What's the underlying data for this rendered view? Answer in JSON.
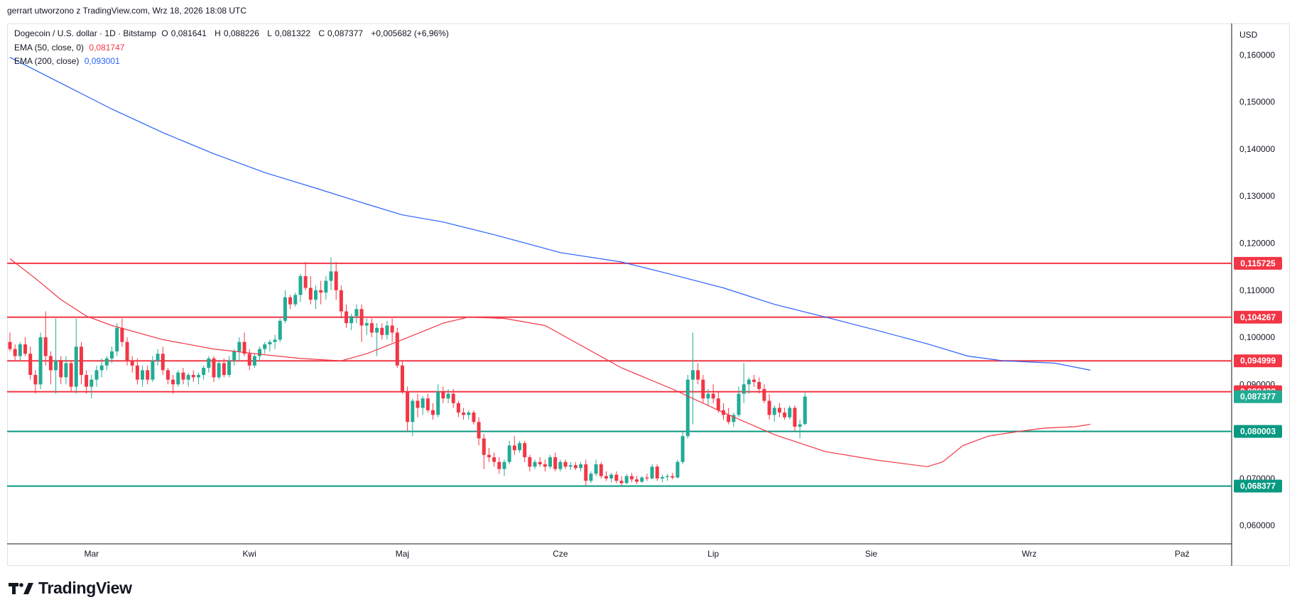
{
  "header": "gerrart utworzono z TradingView.com, Wrz 18, 2026 18:08 UTC",
  "legend": {
    "symbol": "Dogecoin / U.S. dollar · 1D · Bitstamp",
    "open_label": "O",
    "open": "0,081641",
    "high_label": "H",
    "high": "0,088226",
    "low_label": "L",
    "low": "0,081322",
    "close_label": "C",
    "close": "0,087377",
    "change": "+0,005682 (+6,96%)",
    "ema50_label": "EMA (50, close, 0)",
    "ema50_value": "0,081747",
    "ema200_label": "EMA (200, close)",
    "ema200_value": "0,093001"
  },
  "currency": "USD",
  "brand": "TradingView",
  "colors": {
    "up": "#22ab94",
    "down": "#f23645",
    "ema50": "#f23645",
    "ema200": "#2962ff",
    "resistance": "#f23645",
    "support": "#089981",
    "text": "#131722",
    "axis": "#6a6d78"
  },
  "chart_data": {
    "type": "candlestick",
    "y_ticks": [
      "0,060000",
      "0,070000",
      "0,080000",
      "0,090000",
      "0,100000",
      "0,110000",
      "0,120000",
      "0,130000",
      "0,140000",
      "0,150000",
      "0,160000"
    ],
    "y_tick_values": [
      0.06,
      0.07,
      0.08,
      0.09,
      0.1,
      0.11,
      0.12,
      0.13,
      0.14,
      0.15,
      0.16
    ],
    "ylim": [
      0.0561,
      0.1667
    ],
    "x_ticks": [
      {
        "label": "Mar",
        "index": 16
      },
      {
        "label": "Kwi",
        "index": 47
      },
      {
        "label": "Maj",
        "index": 77
      },
      {
        "label": "Cze",
        "index": 108
      },
      {
        "label": "Lip",
        "index": 138
      },
      {
        "label": "Sie",
        "index": 169
      },
      {
        "label": "Wrz",
        "index": 200
      },
      {
        "label": "Paź",
        "index": 230
      }
    ],
    "horizontal_levels": [
      {
        "value": 0.115725,
        "label": "0,115725",
        "kind": "resistance"
      },
      {
        "value": 0.104267,
        "label": "0,104267",
        "kind": "resistance"
      },
      {
        "value": 0.094999,
        "label": "0,094999",
        "kind": "resistance"
      },
      {
        "value": 0.088428,
        "label": "0,088428",
        "kind": "resistance"
      },
      {
        "value": 0.080003,
        "label": "0,080003",
        "kind": "support"
      },
      {
        "value": 0.068377,
        "label": "0,068377",
        "kind": "support"
      }
    ],
    "last_price": {
      "value": 0.087377,
      "label": "0,087377"
    },
    "ema200": [
      [
        0,
        0.1595
      ],
      [
        10,
        0.154
      ],
      [
        20,
        0.1485
      ],
      [
        30,
        0.1435
      ],
      [
        40,
        0.139
      ],
      [
        50,
        0.135
      ],
      [
        60,
        0.1317
      ],
      [
        70,
        0.1283
      ],
      [
        77,
        0.126
      ],
      [
        85,
        0.1245
      ],
      [
        95,
        0.1218
      ],
      [
        108,
        0.118
      ],
      [
        120,
        0.116
      ],
      [
        130,
        0.1133
      ],
      [
        140,
        0.1105
      ],
      [
        150,
        0.107
      ],
      [
        160,
        0.1043
      ],
      [
        170,
        0.1015
      ],
      [
        180,
        0.0986
      ],
      [
        188,
        0.096
      ],
      [
        195,
        0.095
      ],
      [
        205,
        0.0945
      ],
      [
        212,
        0.093
      ]
    ],
    "ema50": [
      [
        0,
        0.1167
      ],
      [
        5,
        0.1125
      ],
      [
        10,
        0.108
      ],
      [
        15,
        0.1045
      ],
      [
        20,
        0.1025
      ],
      [
        30,
        0.0995
      ],
      [
        40,
        0.0975
      ],
      [
        50,
        0.0963
      ],
      [
        57,
        0.0955
      ],
      [
        65,
        0.095
      ],
      [
        70,
        0.0965
      ],
      [
        77,
        0.0995
      ],
      [
        85,
        0.103
      ],
      [
        90,
        0.1043
      ],
      [
        97,
        0.104
      ],
      [
        105,
        0.1025
      ],
      [
        110,
        0.0995
      ],
      [
        120,
        0.0935
      ],
      [
        130,
        0.089
      ],
      [
        140,
        0.084
      ],
      [
        150,
        0.0793
      ],
      [
        160,
        0.0757
      ],
      [
        170,
        0.0739
      ],
      [
        180,
        0.0725
      ],
      [
        183,
        0.0735
      ],
      [
        187,
        0.077
      ],
      [
        192,
        0.079
      ],
      [
        198,
        0.08
      ],
      [
        203,
        0.0807
      ],
      [
        209,
        0.081
      ],
      [
        212,
        0.0815
      ]
    ],
    "candles": [
      [
        0.099,
        0.101,
        0.097,
        0.0975
      ],
      [
        0.0975,
        0.0985,
        0.095,
        0.096
      ],
      [
        0.096,
        0.099,
        0.095,
        0.0985
      ],
      [
        0.0985,
        0.1,
        0.096,
        0.0965
      ],
      [
        0.0965,
        0.098,
        0.091,
        0.092
      ],
      [
        0.092,
        0.093,
        0.088,
        0.09
      ],
      [
        0.09,
        0.101,
        0.089,
        0.1
      ],
      [
        0.1,
        0.1055,
        0.094,
        0.096
      ],
      [
        0.096,
        0.097,
        0.09,
        0.093
      ],
      [
        0.093,
        0.104,
        0.088,
        0.095
      ],
      [
        0.095,
        0.096,
        0.09,
        0.0915
      ],
      [
        0.0915,
        0.096,
        0.09,
        0.0945
      ],
      [
        0.0945,
        0.095,
        0.0885,
        0.0895
      ],
      [
        0.0895,
        0.104,
        0.088,
        0.098
      ],
      [
        0.098,
        0.099,
        0.09,
        0.092
      ],
      [
        0.092,
        0.093,
        0.088,
        0.0895
      ],
      [
        0.0895,
        0.092,
        0.087,
        0.091
      ],
      [
        0.091,
        0.094,
        0.0895,
        0.093
      ],
      [
        0.093,
        0.0955,
        0.0915,
        0.094
      ],
      [
        0.094,
        0.096,
        0.093,
        0.0955
      ],
      [
        0.0955,
        0.098,
        0.0945,
        0.097
      ],
      [
        0.097,
        0.103,
        0.096,
        0.102
      ],
      [
        0.102,
        0.104,
        0.098,
        0.099
      ],
      [
        0.099,
        0.1,
        0.094,
        0.095
      ],
      [
        0.095,
        0.096,
        0.0925,
        0.094
      ],
      [
        0.094,
        0.0955,
        0.09,
        0.091
      ],
      [
        0.091,
        0.094,
        0.0895,
        0.093
      ],
      [
        0.093,
        0.094,
        0.09,
        0.091
      ],
      [
        0.091,
        0.096,
        0.0905,
        0.095
      ],
      [
        0.095,
        0.0975,
        0.094,
        0.0965
      ],
      [
        0.0965,
        0.098,
        0.092,
        0.093
      ],
      [
        0.093,
        0.0935,
        0.09,
        0.091
      ],
      [
        0.091,
        0.092,
        0.088,
        0.09
      ],
      [
        0.09,
        0.093,
        0.0895,
        0.0925
      ],
      [
        0.0925,
        0.0935,
        0.09,
        0.091
      ],
      [
        0.091,
        0.0925,
        0.0895,
        0.092
      ],
      [
        0.092,
        0.093,
        0.0905,
        0.0915
      ],
      [
        0.0915,
        0.0925,
        0.09,
        0.092
      ],
      [
        0.092,
        0.094,
        0.091,
        0.0935
      ],
      [
        0.0935,
        0.096,
        0.0925,
        0.0955
      ],
      [
        0.0955,
        0.096,
        0.0905,
        0.0915
      ],
      [
        0.0915,
        0.095,
        0.091,
        0.0945
      ],
      [
        0.0945,
        0.0955,
        0.0915,
        0.092
      ],
      [
        0.092,
        0.096,
        0.0915,
        0.095
      ],
      [
        0.095,
        0.0975,
        0.094,
        0.097
      ],
      [
        0.097,
        0.1,
        0.095,
        0.099
      ],
      [
        0.099,
        0.101,
        0.096,
        0.0965
      ],
      [
        0.0965,
        0.0975,
        0.093,
        0.094
      ],
      [
        0.094,
        0.0965,
        0.0935,
        0.096
      ],
      [
        0.096,
        0.098,
        0.095,
        0.0975
      ],
      [
        0.0975,
        0.099,
        0.0965,
        0.0985
      ],
      [
        0.0985,
        0.0995,
        0.097,
        0.099
      ],
      [
        0.099,
        0.1005,
        0.0975,
        0.0995
      ],
      [
        0.0995,
        0.104,
        0.099,
        0.1035
      ],
      [
        0.1035,
        0.11,
        0.103,
        0.1085
      ],
      [
        0.1085,
        0.109,
        0.106,
        0.107
      ],
      [
        0.107,
        0.1095,
        0.1065,
        0.109
      ],
      [
        0.109,
        0.1135,
        0.1075,
        0.113
      ],
      [
        0.113,
        0.116,
        0.11,
        0.1105
      ],
      [
        0.1105,
        0.113,
        0.107,
        0.108
      ],
      [
        0.108,
        0.111,
        0.106,
        0.11
      ],
      [
        0.11,
        0.112,
        0.107,
        0.1095
      ],
      [
        0.1095,
        0.113,
        0.108,
        0.112
      ],
      [
        0.112,
        0.117,
        0.11,
        0.114
      ],
      [
        0.114,
        0.116,
        0.108,
        0.11
      ],
      [
        0.11,
        0.111,
        0.104,
        0.1055
      ],
      [
        0.1055,
        0.107,
        0.102,
        0.103
      ],
      [
        0.103,
        0.105,
        0.1015,
        0.1045
      ],
      [
        0.1045,
        0.107,
        0.103,
        0.106
      ],
      [
        0.106,
        0.107,
        0.099,
        0.1025
      ],
      [
        0.1025,
        0.104,
        0.1005,
        0.103
      ],
      [
        0.103,
        0.104,
        0.1,
        0.101
      ],
      [
        0.101,
        0.103,
        0.096,
        0.102
      ],
      [
        0.102,
        0.103,
        0.0995,
        0.1005
      ],
      [
        0.1005,
        0.1035,
        0.0995,
        0.1025
      ],
      [
        0.1025,
        0.104,
        0.099,
        0.101
      ],
      [
        0.101,
        0.102,
        0.0935,
        0.094
      ],
      [
        0.094,
        0.095,
        0.088,
        0.0885
      ],
      [
        0.0885,
        0.0895,
        0.08,
        0.082
      ],
      [
        0.082,
        0.087,
        0.079,
        0.0865
      ],
      [
        0.0865,
        0.088,
        0.083,
        0.085
      ],
      [
        0.085,
        0.0875,
        0.0835,
        0.087
      ],
      [
        0.087,
        0.088,
        0.084,
        0.0845
      ],
      [
        0.0845,
        0.086,
        0.0825,
        0.0835
      ],
      [
        0.0835,
        0.09,
        0.083,
        0.0885
      ],
      [
        0.0885,
        0.0895,
        0.086,
        0.087
      ],
      [
        0.087,
        0.089,
        0.086,
        0.088
      ],
      [
        0.088,
        0.089,
        0.085,
        0.086
      ],
      [
        0.086,
        0.0865,
        0.083,
        0.084
      ],
      [
        0.084,
        0.085,
        0.0825,
        0.0835
      ],
      [
        0.0835,
        0.0845,
        0.0825,
        0.084
      ],
      [
        0.084,
        0.0845,
        0.0815,
        0.082
      ],
      [
        0.082,
        0.083,
        0.077,
        0.0785
      ],
      [
        0.0785,
        0.0795,
        0.072,
        0.075
      ],
      [
        0.075,
        0.0765,
        0.0735,
        0.0745
      ],
      [
        0.0745,
        0.0755,
        0.0725,
        0.0735
      ],
      [
        0.0735,
        0.0745,
        0.071,
        0.072
      ],
      [
        0.072,
        0.074,
        0.0705,
        0.0735
      ],
      [
        0.0735,
        0.078,
        0.073,
        0.077
      ],
      [
        0.077,
        0.079,
        0.075,
        0.076
      ],
      [
        0.076,
        0.078,
        0.0755,
        0.0775
      ],
      [
        0.0775,
        0.078,
        0.0735,
        0.0745
      ],
      [
        0.0745,
        0.075,
        0.0715,
        0.0725
      ],
      [
        0.0725,
        0.074,
        0.072,
        0.0735
      ],
      [
        0.0735,
        0.0745,
        0.0725,
        0.073
      ],
      [
        0.073,
        0.074,
        0.0715,
        0.0725
      ],
      [
        0.0725,
        0.075,
        0.072,
        0.0745
      ],
      [
        0.0745,
        0.0755,
        0.0715,
        0.072
      ],
      [
        0.072,
        0.074,
        0.0715,
        0.0735
      ],
      [
        0.0735,
        0.074,
        0.072,
        0.0725
      ],
      [
        0.0725,
        0.0735,
        0.0718,
        0.0728
      ],
      [
        0.0728,
        0.0735,
        0.0718,
        0.0722
      ],
      [
        0.0722,
        0.0735,
        0.0715,
        0.073
      ],
      [
        0.073,
        0.074,
        0.0685,
        0.0695
      ],
      [
        0.0695,
        0.0715,
        0.069,
        0.071
      ],
      [
        0.071,
        0.074,
        0.0705,
        0.073
      ],
      [
        0.073,
        0.0735,
        0.07,
        0.0705
      ],
      [
        0.0705,
        0.0715,
        0.0695,
        0.07
      ],
      [
        0.07,
        0.0712,
        0.0692,
        0.0708
      ],
      [
        0.0708,
        0.0715,
        0.069,
        0.0695
      ],
      [
        0.0695,
        0.0705,
        0.0685,
        0.069
      ],
      [
        0.069,
        0.071,
        0.0688,
        0.0705
      ],
      [
        0.0705,
        0.0712,
        0.0692,
        0.0698
      ],
      [
        0.0698,
        0.0705,
        0.0688,
        0.0693
      ],
      [
        0.0693,
        0.0705,
        0.069,
        0.0702
      ],
      [
        0.0702,
        0.071,
        0.0695,
        0.07
      ],
      [
        0.07,
        0.073,
        0.0698,
        0.0725
      ],
      [
        0.0725,
        0.073,
        0.0695,
        0.07
      ],
      [
        0.07,
        0.0708,
        0.0692,
        0.0703
      ],
      [
        0.0703,
        0.071,
        0.0695,
        0.0705
      ],
      [
        0.0705,
        0.0712,
        0.0698,
        0.0702
      ],
      [
        0.0702,
        0.074,
        0.07,
        0.0735
      ],
      [
        0.0735,
        0.08,
        0.073,
        0.079
      ],
      [
        0.079,
        0.092,
        0.0785,
        0.091
      ],
      [
        0.091,
        0.101,
        0.0815,
        0.093
      ],
      [
        0.093,
        0.0945,
        0.09,
        0.091
      ],
      [
        0.091,
        0.092,
        0.086,
        0.087
      ],
      [
        0.087,
        0.089,
        0.0855,
        0.088
      ],
      [
        0.088,
        0.09,
        0.086,
        0.087
      ],
      [
        0.087,
        0.0885,
        0.084,
        0.0845
      ],
      [
        0.0845,
        0.086,
        0.0825,
        0.0835
      ],
      [
        0.0835,
        0.085,
        0.0815,
        0.082
      ],
      [
        0.082,
        0.084,
        0.081,
        0.0835
      ],
      [
        0.0835,
        0.0895,
        0.083,
        0.088
      ],
      [
        0.088,
        0.0945,
        0.086,
        0.09
      ],
      [
        0.09,
        0.0915,
        0.088,
        0.091
      ],
      [
        0.091,
        0.092,
        0.0895,
        0.0905
      ],
      [
        0.0905,
        0.0915,
        0.088,
        0.089
      ],
      [
        0.089,
        0.09,
        0.086,
        0.0865
      ],
      [
        0.0865,
        0.088,
        0.0825,
        0.0835
      ],
      [
        0.0835,
        0.0855,
        0.082,
        0.085
      ],
      [
        0.085,
        0.086,
        0.083,
        0.084
      ],
      [
        0.084,
        0.085,
        0.0825,
        0.083
      ],
      [
        0.083,
        0.0855,
        0.0825,
        0.085
      ],
      [
        0.085,
        0.0855,
        0.08,
        0.081
      ],
      [
        0.081,
        0.0825,
        0.0785,
        0.0815
      ],
      [
        0.0816,
        0.0882,
        0.0813,
        0.0874
      ]
    ]
  }
}
